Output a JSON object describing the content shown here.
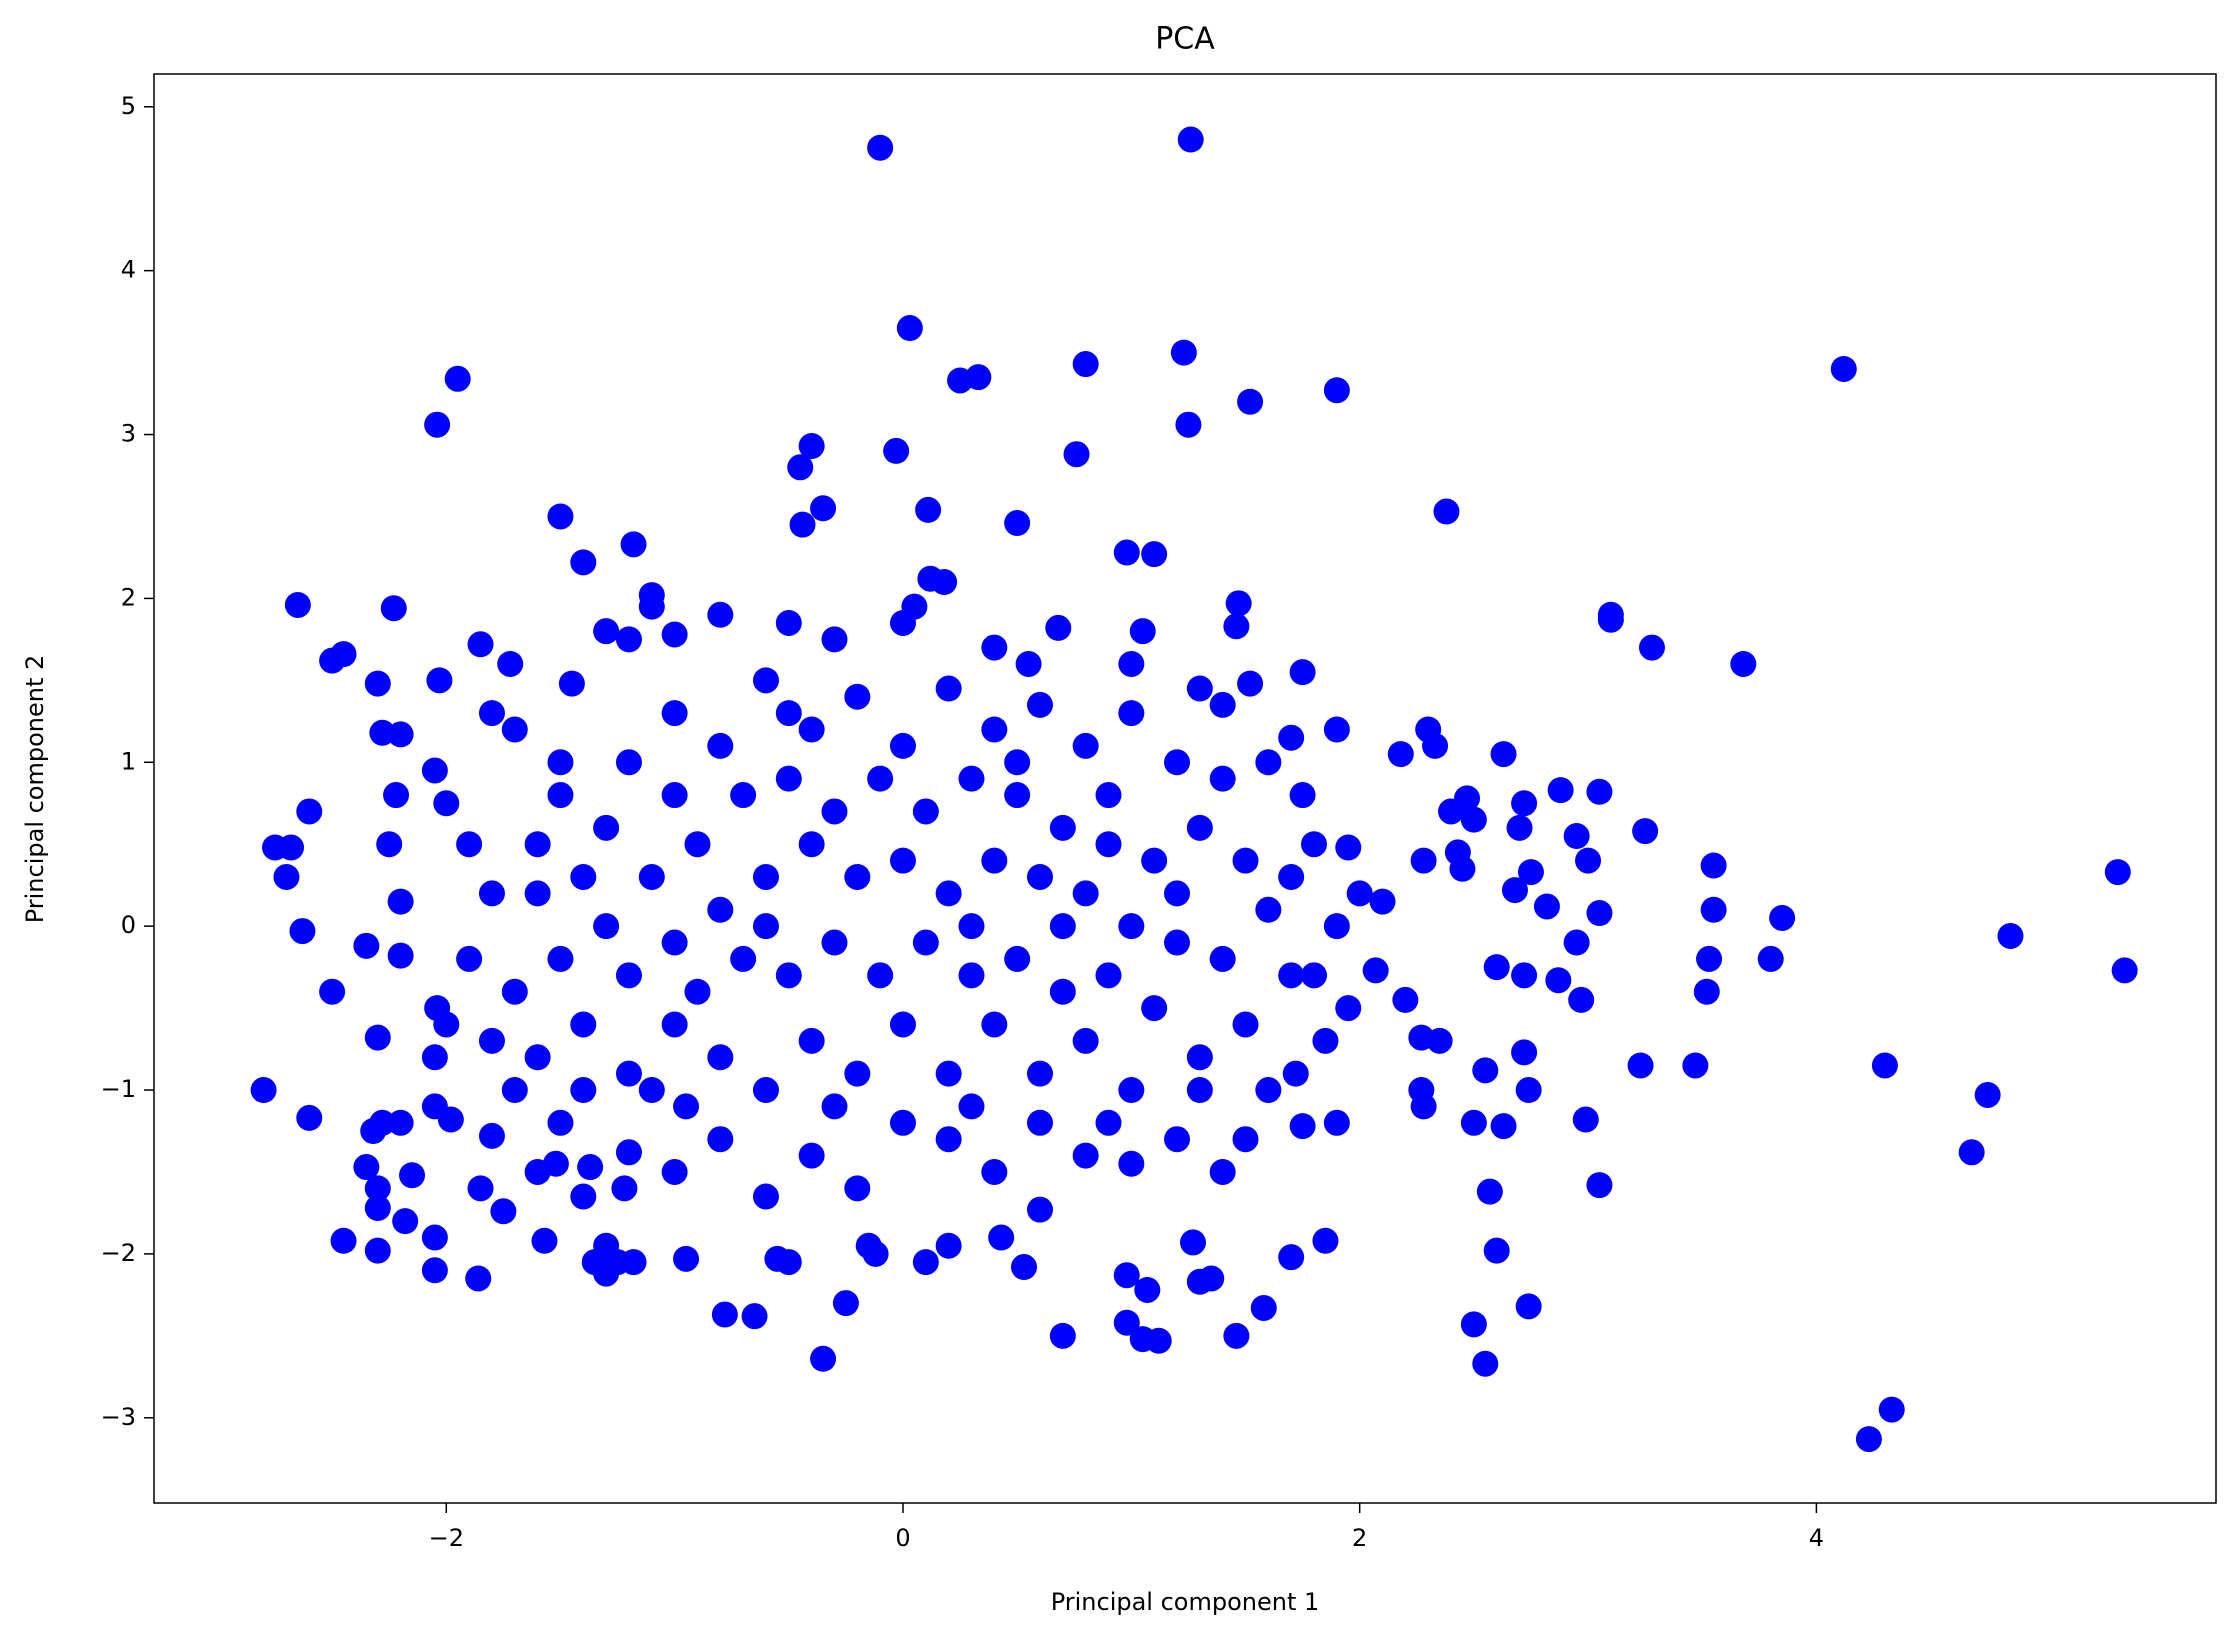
{
  "chart_data": {
    "type": "scatter",
    "title": "PCA",
    "x_label": "Principal component 1",
    "y_label": "Principal component 2",
    "color": "#0000ff",
    "xlim": [
      -3.28,
      5.75
    ],
    "ylim": [
      -3.52,
      5.2
    ],
    "xticks": [
      {
        "value": -2,
        "label": "−2"
      },
      0,
      2,
      4
    ],
    "yticks": [
      {
        "value": -3,
        "label": "−3"
      },
      {
        "value": -2,
        "label": "−2"
      },
      {
        "value": -1,
        "label": "−1"
      },
      0,
      1,
      2,
      3,
      4,
      5
    ],
    "x": [
      -0.1,
      1.26,
      0.03,
      0.25,
      0.33,
      0.8,
      1.23,
      1.25,
      1.52,
      1.9,
      4.12,
      -1.95,
      -2.04,
      -0.4,
      -0.45,
      -0.03,
      0.76,
      -0.35,
      -0.44,
      0.11,
      0.5,
      2.38,
      -1.5,
      -1.4,
      -1.18,
      0.98,
      1.1,
      0.12,
      0.18,
      -2.65,
      -2.23,
      -2.5,
      -2.45,
      -2.03,
      3.1,
      3.1,
      3.28,
      3.68,
      1.47,
      1.46,
      1.75,
      1.9,
      2.18,
      2.3,
      2.33,
      2.63,
      2.47,
      2.4,
      2.5,
      2.28,
      2.43,
      2.45,
      2.72,
      2.88,
      3.05,
      3.25,
      2.7,
      2.95,
      3.0,
      2.75,
      2.68,
      2.82,
      3.05,
      2.95,
      3.55,
      3.55,
      3.53,
      3.52,
      3.85,
      3.8,
      4.85,
      5.32,
      5.35,
      2.6,
      2.72,
      2.87,
      2.97,
      2.27,
      2.2,
      2.07,
      2.35,
      2.55,
      2.72,
      2.27,
      2.28,
      2.5,
      2.63,
      2.74,
      2.99,
      3.05,
      3.23,
      3.47,
      4.3,
      4.75,
      4.68,
      2.57,
      2.6,
      2.5,
      2.55,
      2.74,
      4.23,
      4.33,
      1.85,
      1.7,
      1.58,
      1.46,
      1.35,
      1.3,
      1.27,
      1.12,
      1.05,
      1.07,
      0.98,
      0.98,
      0.7,
      -0.35,
      -0.25,
      -0.12,
      -0.15,
      0.1,
      0.2,
      0.43,
      0.6,
      0.53,
      -0.65,
      -0.78,
      -0.95,
      -0.5,
      -0.55,
      -1.3,
      -1.3,
      -1.25,
      -1.35,
      -1.18,
      -1.57,
      -1.86,
      -2.05,
      -2.05,
      -2.18,
      -2.3,
      -2.45,
      -2.3,
      -2.15,
      -2.3,
      -2.35,
      -2.32,
      -2.28,
      -2.2,
      -2.05,
      -1.98,
      -1.8,
      -1.85,
      -1.75,
      -1.6,
      -1.52,
      -1.4,
      -1.37,
      -1.2,
      -1.22,
      -2.6,
      -2.8,
      -2.3,
      -2.05,
      -2.0,
      -2.04,
      -2.35,
      -2.2,
      -2.5,
      -2.63,
      -2.7,
      -2.75,
      -2.68,
      -2.6,
      -2.2,
      -2.22,
      -2.25,
      -2.28,
      -2.2,
      -2.3,
      -2.0,
      -2.05,
      -1.85,
      -1.72,
      -1.8,
      -1.7,
      -1.5,
      -1.45,
      -1.3,
      -1.2,
      -1.1,
      -1.1,
      -1.0,
      -0.8,
      -0.5,
      -0.3,
      0.0,
      0.05,
      0.4,
      0.55,
      0.68,
      1.05,
      1.0,
      1.3,
      1.4,
      1.52,
      1.7,
      1.6,
      1.75,
      1.8,
      1.95,
      2.0,
      2.1,
      1.9,
      1.8,
      1.95,
      1.85,
      1.72,
      1.6,
      1.75,
      1.9,
      1.5,
      1.4,
      1.2,
      1.0,
      0.8,
      0.6,
      0.4,
      0.2,
      0.0,
      -0.2,
      -0.4,
      -0.6,
      -0.8,
      -1.0,
      -0.95,
      -1.5,
      -1.6,
      -1.8,
      -1.7,
      -1.9,
      -1.8,
      -1.6,
      -1.4,
      -1.5,
      -1.3,
      -1.2,
      -1.0,
      -0.8,
      -0.6,
      -0.4,
      -0.2,
      0.0,
      0.2,
      0.4,
      0.6,
      0.8,
      1.0,
      1.2,
      1.4,
      1.3,
      1.5,
      1.6,
      1.4,
      1.5,
      1.3,
      1.1,
      1.0,
      0.8,
      0.6,
      0.4,
      0.2,
      0.0,
      -0.2,
      -0.4,
      -0.6,
      -0.8,
      -1.0,
      -1.2,
      -1.4,
      -1.2,
      -1.0,
      -1.3,
      -1.1,
      -0.9,
      -0.7,
      -0.5,
      -0.3,
      -0.1,
      0.1,
      0.3,
      0.5,
      0.7,
      0.9,
      1.1,
      1.2,
      1.0,
      0.8,
      0.6,
      0.4,
      0.2,
      0.0,
      -0.2,
      -0.4,
      -0.6,
      -0.8,
      -0.7,
      -0.5,
      -0.3,
      -0.1,
      0.1,
      0.3,
      0.5,
      0.7,
      0.9,
      1.2,
      -0.9,
      -1.5,
      -1.6,
      -0.6,
      0.3,
      0.7,
      -0.3,
      0.3,
      0.9,
      -1.1,
      -0.5,
      0.5,
      -1.0,
      0.9,
      1.3,
      -1.7,
      -1.9,
      -1.4,
      1.7,
      1.7
    ],
    "values": [
      4.75,
      4.8,
      3.65,
      3.33,
      3.35,
      3.43,
      3.5,
      3.06,
      3.2,
      3.27,
      3.4,
      3.34,
      3.06,
      2.93,
      2.8,
      2.9,
      2.88,
      2.55,
      2.45,
      2.54,
      2.46,
      2.53,
      2.5,
      2.22,
      2.33,
      2.28,
      2.27,
      2.12,
      2.1,
      1.96,
      1.94,
      1.62,
      1.66,
      1.5,
      1.9,
      1.87,
      1.7,
      1.6,
      1.97,
      1.83,
      1.55,
      1.2,
      1.05,
      1.2,
      1.1,
      1.05,
      0.78,
      0.7,
      0.65,
      0.4,
      0.45,
      0.35,
      0.75,
      0.83,
      0.82,
      0.58,
      0.6,
      0.55,
      0.4,
      0.33,
      0.22,
      0.12,
      0.08,
      -0.1,
      0.37,
      0.1,
      -0.2,
      -0.4,
      0.05,
      -0.2,
      -0.06,
      0.33,
      -0.27,
      -0.25,
      -0.3,
      -0.33,
      -0.45,
      -0.68,
      -0.45,
      -0.27,
      -0.7,
      -0.88,
      -0.77,
      -1.0,
      -1.1,
      -1.2,
      -1.22,
      -1.0,
      -1.18,
      -1.58,
      -0.85,
      -0.85,
      -0.85,
      -1.03,
      -1.38,
      -1.62,
      -1.98,
      -2.43,
      -2.67,
      -2.32,
      -3.13,
      -2.95,
      -1.92,
      -2.02,
      -2.33,
      -2.5,
      -2.15,
      -2.17,
      -1.93,
      -2.53,
      -2.52,
      -2.22,
      -2.42,
      -2.13,
      -2.5,
      -2.64,
      -2.3,
      -2.0,
      -1.95,
      -2.05,
      -1.95,
      -1.9,
      -1.73,
      -2.08,
      -2.38,
      -2.37,
      -2.03,
      -2.05,
      -2.03,
      -2.12,
      -1.95,
      -2.05,
      -2.05,
      -2.05,
      -1.92,
      -2.15,
      -2.1,
      -1.9,
      -1.8,
      -1.98,
      -1.92,
      -1.72,
      -1.52,
      -1.6,
      -1.47,
      -1.25,
      -1.2,
      -1.2,
      -1.1,
      -1.18,
      -1.28,
      -1.6,
      -1.74,
      -1.5,
      -1.45,
      -1.65,
      -1.47,
      -1.38,
      -1.6,
      -1.17,
      -1.0,
      -0.68,
      -0.8,
      -0.6,
      -0.5,
      -0.12,
      -0.18,
      -0.4,
      -0.03,
      0.3,
      0.48,
      0.48,
      0.7,
      0.15,
      0.8,
      0.5,
      1.18,
      1.17,
      1.48,
      0.75,
      0.95,
      1.72,
      1.6,
      1.3,
      1.2,
      1.0,
      1.48,
      1.8,
      1.75,
      1.95,
      2.02,
      1.78,
      1.9,
      1.85,
      1.75,
      1.85,
      1.95,
      1.7,
      1.6,
      1.82,
      1.8,
      1.6,
      1.45,
      1.35,
      1.48,
      1.15,
      1.0,
      0.8,
      0.5,
      0.48,
      0.2,
      0.15,
      0.0,
      -0.3,
      -0.5,
      -0.7,
      -0.9,
      -1.0,
      -1.22,
      -1.2,
      -1.3,
      -1.5,
      -1.3,
      -1.45,
      -1.4,
      -1.2,
      -1.5,
      -1.3,
      -1.2,
      -1.6,
      -1.4,
      -1.65,
      -1.3,
      -1.5,
      -1.1,
      -1.2,
      -0.8,
      -0.7,
      -0.4,
      -0.2,
      0.2,
      0.5,
      0.3,
      0.8,
      0.6,
      1.0,
      1.3,
      1.1,
      1.5,
      1.2,
      1.4,
      1.1,
      1.45,
      1.2,
      1.35,
      1.1,
      1.3,
      1.0,
      0.9,
      0.6,
      0.4,
      0.1,
      -0.2,
      -0.6,
      -0.8,
      -0.5,
      -1.0,
      -0.7,
      -0.9,
      -0.6,
      -0.9,
      -0.6,
      -0.9,
      -0.7,
      -1.0,
      -0.8,
      -0.6,
      -0.9,
      -0.6,
      -0.3,
      -0.1,
      0.0,
      0.3,
      0.5,
      0.8,
      0.9,
      0.7,
      0.9,
      0.7,
      0.9,
      0.8,
      0.6,
      0.8,
      0.4,
      0.2,
      0.0,
      0.2,
      0.3,
      0.4,
      0.2,
      0.4,
      0.3,
      0.5,
      0.3,
      0.1,
      -0.2,
      -0.3,
      -0.1,
      -0.3,
      -0.1,
      -0.3,
      -0.2,
      -0.4,
      -0.3,
      -0.1,
      -0.4,
      -0.2,
      0.2,
      0.0,
      0.0,
      0.0,
      -1.1,
      -1.1,
      -1.2,
      -1.0,
      1.3,
      1.0,
      0.8,
      0.5,
      -1.0,
      -1.0,
      0.5,
      -1.0,
      0.3,
      -0.3
    ]
  }
}
